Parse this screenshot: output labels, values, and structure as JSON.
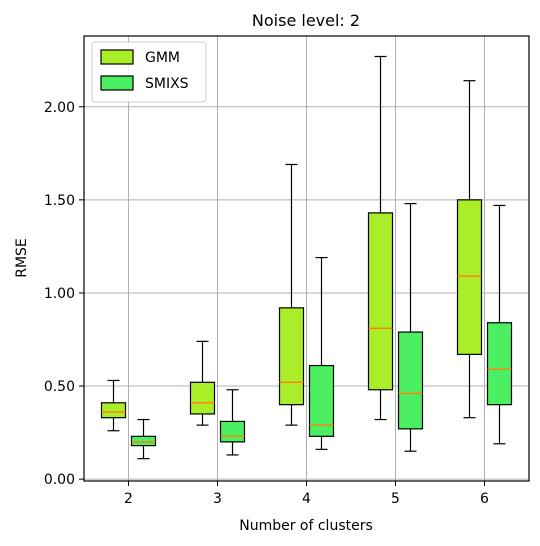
{
  "chart_data": {
    "type": "boxplot",
    "title": "Noise level: 2",
    "xlabel": "Number of clusters",
    "ylabel": "RMSE",
    "categories": [
      "2",
      "3",
      "4",
      "5",
      "6"
    ],
    "ylim": [
      -0.01,
      2.38
    ],
    "yticks": [
      0.0,
      0.5,
      1.0,
      1.5,
      2.0
    ],
    "ytick_labels": [
      "0.00",
      "0.50",
      "1.00",
      "1.50",
      "2.00"
    ],
    "grid": true,
    "legend_position": "top-left",
    "median_color": "#ff7f0e",
    "series": [
      {
        "name": "GMM",
        "color": "#aaee2a",
        "boxes": [
          {
            "whisker_low": 0.26,
            "q1": 0.33,
            "median": 0.36,
            "q3": 0.41,
            "whisker_high": 0.53
          },
          {
            "whisker_low": 0.29,
            "q1": 0.35,
            "median": 0.41,
            "q3": 0.52,
            "whisker_high": 0.74
          },
          {
            "whisker_low": 0.29,
            "q1": 0.4,
            "median": 0.52,
            "q3": 0.92,
            "whisker_high": 1.69
          },
          {
            "whisker_low": 0.32,
            "q1": 0.48,
            "median": 0.81,
            "q3": 1.43,
            "whisker_high": 2.27
          },
          {
            "whisker_low": 0.33,
            "q1": 0.67,
            "median": 1.09,
            "q3": 1.5,
            "whisker_high": 2.14
          }
        ]
      },
      {
        "name": "SMIXS",
        "color": "#4cee62",
        "boxes": [
          {
            "whisker_low": 0.11,
            "q1": 0.18,
            "median": 0.2,
            "q3": 0.23,
            "whisker_high": 0.32
          },
          {
            "whisker_low": 0.13,
            "q1": 0.2,
            "median": 0.23,
            "q3": 0.31,
            "whisker_high": 0.48
          },
          {
            "whisker_low": 0.16,
            "q1": 0.23,
            "median": 0.29,
            "q3": 0.61,
            "whisker_high": 1.19
          },
          {
            "whisker_low": 0.15,
            "q1": 0.27,
            "median": 0.46,
            "q3": 0.79,
            "whisker_high": 1.48
          },
          {
            "whisker_low": 0.19,
            "q1": 0.4,
            "median": 0.59,
            "q3": 0.84,
            "whisker_high": 1.47
          }
        ]
      }
    ]
  }
}
